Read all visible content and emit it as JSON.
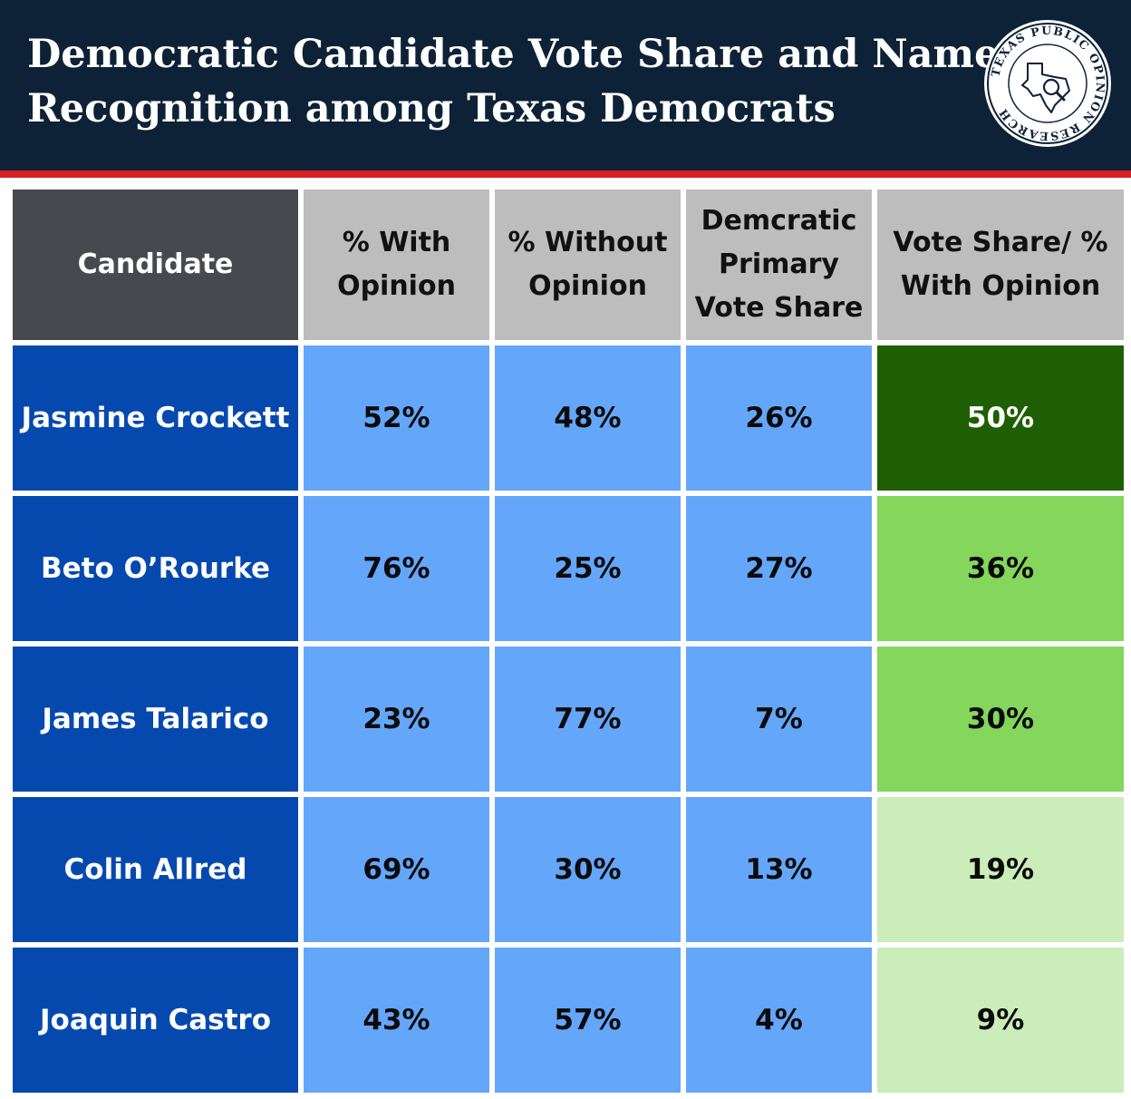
{
  "header": {
    "title_line1": "Democratic Candidate Vote Share and Name",
    "title_line2": "Recognition among Texas Democrats",
    "logo_text": "TEXAS PUBLIC OPINION RESEARCH"
  },
  "colors": {
    "banner": "#0d2237",
    "accent_line": "#d81f26",
    "candidate_cell": "#0549af",
    "value_cell": "#64a6fa",
    "ratio_high": "#1e5f04",
    "ratio_mid": "#84d65c",
    "ratio_low": "#cbedb9"
  },
  "chart_data": {
    "type": "table",
    "columns": [
      "Candidate",
      "% With Opinion",
      "% Without Opinion",
      "Demcratic Primary Vote Share",
      "Vote Share/ % With Opinion"
    ],
    "rows": [
      {
        "candidate": "Jasmine Crockett",
        "with_opinion": "52%",
        "without_opinion": "48%",
        "vote_share": "26%",
        "ratio": "50%"
      },
      {
        "candidate": "Beto O’Rourke",
        "with_opinion": "76%",
        "without_opinion": "25%",
        "vote_share": "27%",
        "ratio": "36%"
      },
      {
        "candidate": "James Talarico",
        "with_opinion": "23%",
        "without_opinion": "77%",
        "vote_share": "7%",
        "ratio": "30%"
      },
      {
        "candidate": "Colin Allred",
        "with_opinion": "69%",
        "without_opinion": "30%",
        "vote_share": "13%",
        "ratio": "19%"
      },
      {
        "candidate": "Joaquin Castro",
        "with_opinion": "43%",
        "without_opinion": "57%",
        "vote_share": "4%",
        "ratio": "9%"
      }
    ]
  }
}
